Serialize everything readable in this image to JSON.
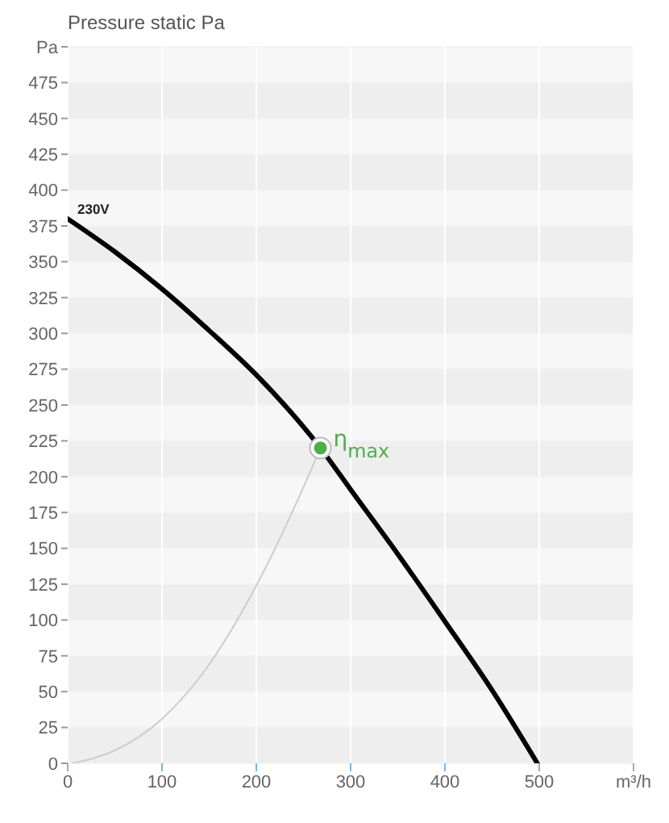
{
  "chart_data": {
    "type": "line",
    "title": "Pressure static Pa",
    "xlim": [
      0,
      600
    ],
    "xticks": [
      0,
      100,
      200,
      300,
      400,
      500,
      {
        "value": 600,
        "label": "m³/h"
      }
    ],
    "ylim": [
      0,
      500
    ],
    "yticks": [
      0,
      25,
      50,
      75,
      100,
      125,
      150,
      175,
      200,
      225,
      250,
      275,
      300,
      325,
      350,
      375,
      400,
      425,
      450,
      475,
      {
        "value": 500,
        "label": "Pa"
      }
    ],
    "grid": true,
    "line_style": "solid",
    "series": [
      {
        "name": "230V",
        "color": "#000000",
        "x": [
          0,
          50,
          100,
          150,
          200,
          268,
          300,
          350,
          400,
          450,
          498
        ],
        "values": [
          380,
          357,
          331,
          302,
          271,
          220,
          191,
          146,
          99,
          51,
          0
        ]
      },
      {
        "color": "#cccccc",
        "x": [
          5,
          50,
          100,
          150,
          200,
          240,
          268
        ],
        "values": [
          0,
          9,
          31,
          69,
          124,
          178,
          220
        ]
      },
      {
        "type": "scatter",
        "color": "#4cae4c",
        "marker": "circle",
        "x": [
          268
        ],
        "values": [
          220
        ]
      }
    ],
    "annotations": [
      {
        "text": "η$_{max}$",
        "x": 268,
        "y": 220
      }
    ]
  }
}
